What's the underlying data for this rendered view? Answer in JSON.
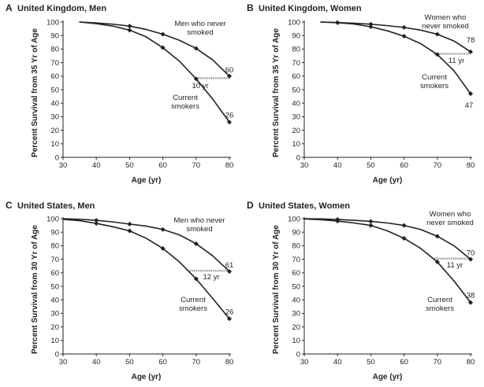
{
  "chart_data": [
    {
      "type": "line",
      "letter": "A",
      "title": "United Kingdom, Men",
      "xlabel": "Age (yr)",
      "ylabel": "Percent Survival from 35 Yr of Age",
      "xlim": [
        30,
        80
      ],
      "ylim": [
        0,
        100
      ],
      "xticks": [
        30,
        40,
        50,
        60,
        70,
        80
      ],
      "yticks": [
        0,
        10,
        20,
        30,
        40,
        50,
        60,
        70,
        80,
        90,
        100
      ],
      "series": [
        {
          "name": "Men who never smoked",
          "label_lines": [
            "Men who never",
            "smoked"
          ],
          "x": [
            35,
            40,
            45,
            50,
            55,
            60,
            65,
            70,
            75,
            80
          ],
          "y": [
            100,
            99.3,
            98.4,
            97,
            94.5,
            91,
            86.5,
            80.5,
            72,
            60
          ],
          "markers": [
            [
              50,
              97
            ],
            [
              60,
              91
            ],
            [
              70,
              80.5
            ],
            [
              80,
              60
            ]
          ],
          "end_label": "60"
        },
        {
          "name": "Current smokers",
          "label_lines": [
            "Current",
            "smokers"
          ],
          "x": [
            35,
            40,
            45,
            50,
            55,
            60,
            65,
            70,
            75,
            80
          ],
          "y": [
            100,
            98.8,
            97,
            94,
            89,
            81,
            71,
            58,
            43,
            26
          ],
          "markers": [
            [
              50,
              94
            ],
            [
              60,
              81
            ],
            [
              70,
              58
            ],
            [
              80,
              26
            ]
          ],
          "end_label": "26"
        }
      ],
      "gap": {
        "label": "10 yr",
        "y": 58.5,
        "x_from": 70,
        "x_to": 80
      }
    },
    {
      "type": "line",
      "letter": "B",
      "title": "United Kingdom, Women",
      "xlabel": "Age (yr)",
      "ylabel": "Percent Survival from 35 Yr of Age",
      "xlim": [
        30,
        80
      ],
      "ylim": [
        0,
        100
      ],
      "xticks": [
        30,
        40,
        50,
        60,
        70,
        80
      ],
      "yticks": [
        0,
        10,
        20,
        30,
        40,
        50,
        60,
        70,
        80,
        90,
        100
      ],
      "series": [
        {
          "name": "Women who never smoked",
          "label_lines": [
            "Women who",
            "never smoked"
          ],
          "x": [
            35,
            40,
            45,
            50,
            55,
            60,
            65,
            70,
            75,
            80
          ],
          "y": [
            100,
            99.6,
            99.1,
            98.4,
            97.3,
            96,
            94,
            91,
            86,
            78
          ],
          "markers": [
            [
              40,
              99.6
            ],
            [
              50,
              98.4
            ],
            [
              60,
              96
            ],
            [
              70,
              91
            ],
            [
              80,
              78
            ]
          ],
          "end_label": "78"
        },
        {
          "name": "Current smokers",
          "label_lines": [
            "Current",
            "smokers"
          ],
          "x": [
            35,
            40,
            45,
            50,
            55,
            60,
            65,
            70,
            75,
            80
          ],
          "y": [
            100,
            99.5,
            98.5,
            96.5,
            93.5,
            89.5,
            84,
            76,
            64,
            47
          ],
          "markers": [
            [
              40,
              99.5
            ],
            [
              50,
              96.5
            ],
            [
              60,
              89.5
            ],
            [
              70,
              76
            ],
            [
              80,
              47
            ]
          ],
          "end_label": "47"
        }
      ],
      "gap": {
        "label": "11 yr",
        "y": 76.5,
        "x_from": 69,
        "x_to": 80
      }
    },
    {
      "type": "line",
      "letter": "C",
      "title": "United States, Men",
      "xlabel": "Age (yr)",
      "ylabel": "Percent Survival from 30 Yr of Age",
      "xlim": [
        30,
        80
      ],
      "ylim": [
        0,
        100
      ],
      "xticks": [
        30,
        40,
        50,
        60,
        70,
        80
      ],
      "yticks": [
        0,
        10,
        20,
        30,
        40,
        50,
        60,
        70,
        80,
        90,
        100
      ],
      "series": [
        {
          "name": "Men who never smoked",
          "label_lines": [
            "Men who never",
            "smoked"
          ],
          "x": [
            30,
            35,
            40,
            45,
            50,
            55,
            60,
            65,
            70,
            75,
            80
          ],
          "y": [
            100,
            99.5,
            98.8,
            97.6,
            96,
            94.5,
            92,
            88,
            81.5,
            72.5,
            61
          ],
          "markers": [
            [
              40,
              98.8
            ],
            [
              50,
              96
            ],
            [
              60,
              92
            ],
            [
              70,
              81.5
            ],
            [
              80,
              61
            ]
          ],
          "end_label": "61"
        },
        {
          "name": "Current smokers",
          "label_lines": [
            "Current",
            "smokers"
          ],
          "x": [
            30,
            35,
            40,
            45,
            50,
            55,
            60,
            65,
            70,
            75,
            80
          ],
          "y": [
            99.5,
            98.5,
            96.5,
            94,
            91,
            85.5,
            78,
            68,
            55.5,
            41,
            26
          ],
          "markers": [
            [
              40,
              96.5
            ],
            [
              50,
              91
            ],
            [
              60,
              78
            ],
            [
              70,
              55.5
            ],
            [
              80,
              26
            ]
          ],
          "end_label": "26"
        }
      ],
      "gap": {
        "label": "12 yr",
        "y": 61.5,
        "x_from": 68,
        "x_to": 80
      }
    },
    {
      "type": "line",
      "letter": "D",
      "title": "United States, Women",
      "xlabel": "Age (yr)",
      "ylabel": "Percent Survival from 30 Yr of Age",
      "xlim": [
        30,
        80
      ],
      "ylim": [
        0,
        100
      ],
      "xticks": [
        30,
        40,
        50,
        60,
        70,
        80
      ],
      "yticks": [
        0,
        10,
        20,
        30,
        40,
        50,
        60,
        70,
        80,
        90,
        100
      ],
      "series": [
        {
          "name": "Women who never smoked",
          "label_lines": [
            "Women who",
            "never smoked"
          ],
          "x": [
            30,
            35,
            40,
            45,
            50,
            55,
            60,
            65,
            70,
            75,
            80
          ],
          "y": [
            100,
            99.8,
            99.4,
            98.8,
            98,
            96.8,
            95,
            92,
            87,
            80,
            70
          ],
          "markers": [
            [
              40,
              99.4
            ],
            [
              50,
              98
            ],
            [
              60,
              95
            ],
            [
              70,
              87
            ],
            [
              80,
              70
            ]
          ],
          "end_label": "70"
        },
        {
          "name": "Current smokers",
          "label_lines": [
            "Current",
            "smokers"
          ],
          "x": [
            30,
            35,
            40,
            45,
            50,
            55,
            60,
            65,
            70,
            75,
            80
          ],
          "y": [
            99.8,
            99.2,
            98.2,
            96.8,
            95,
            91,
            85.5,
            78,
            68,
            54,
            38
          ],
          "markers": [
            [
              40,
              98.2
            ],
            [
              50,
              95
            ],
            [
              60,
              85.5
            ],
            [
              70,
              68
            ],
            [
              80,
              38
            ]
          ],
          "end_label": "38"
        }
      ],
      "gap": {
        "label": "11 yr",
        "y": 70.5,
        "x_from": 69,
        "x_to": 80
      }
    }
  ]
}
